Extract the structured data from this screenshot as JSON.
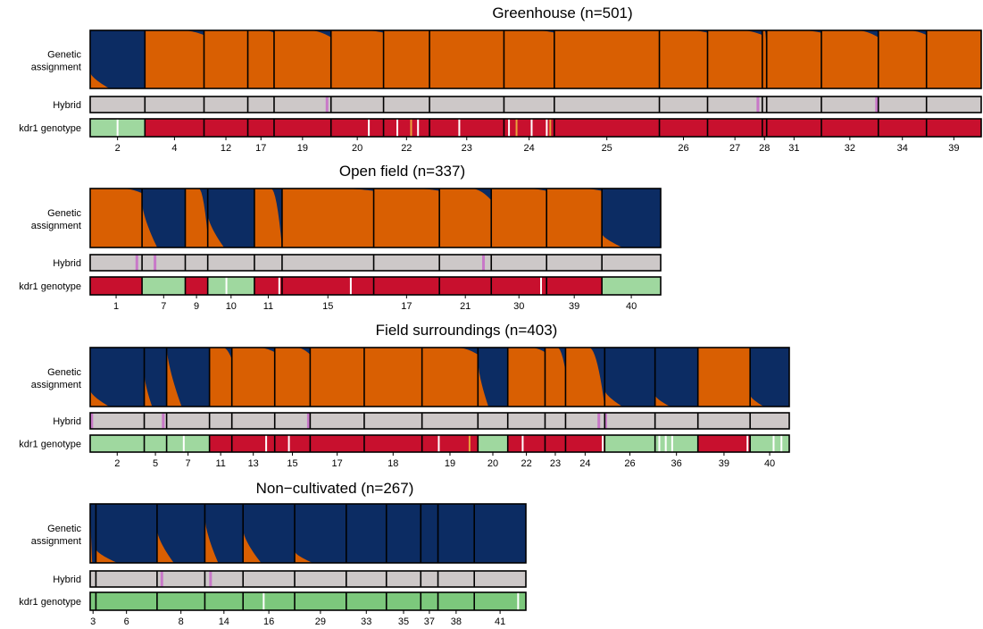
{
  "colors": {
    "cluster_orange": "#d95f02",
    "cluster_navy": "#0c2c63",
    "hybrid_gray": "#cdc8c8",
    "hybrid_pink": "#c878c8",
    "kdr_red": "#c8102e",
    "kdr_green": "#9fd89f",
    "kdr_green_dark": "#7cc87c",
    "kdr_orange": "#e8a33a",
    "kdr_white": "#ffffff"
  },
  "chart_data": {
    "type": "stacked-bar",
    "row_labels": {
      "assignment_line1": "Genetic",
      "assignment_line2": "assignment",
      "hybrid": "Hybrid",
      "kdr": "kdr1 genotype"
    },
    "panels": [
      {
        "title": "Greenhouse (n=501)",
        "n": 501,
        "populations": [
          {
            "label": "2",
            "n": 25,
            "navy": 0.97,
            "hybrid": [],
            "kdr": "green",
            "kdr_marks": [
              0.5
            ]
          },
          {
            "label": "4",
            "n": 27,
            "navy": 0.02,
            "hybrid": [],
            "kdr": "red",
            "kdr_marks": []
          },
          {
            "label": "12",
            "n": 20,
            "navy": 0.0,
            "hybrid": [],
            "kdr": "red",
            "kdr_marks": []
          },
          {
            "label": "17",
            "n": 12,
            "navy": 0.01,
            "hybrid": [],
            "kdr": "red",
            "kdr_marks": []
          },
          {
            "label": "19",
            "n": 26,
            "navy": 0.03,
            "hybrid": [
              0.93
            ],
            "kdr": "red",
            "kdr_marks": []
          },
          {
            "label": "20",
            "n": 24,
            "navy": 0.01,
            "hybrid": [],
            "kdr": "red",
            "kdr_marks": [
              0.72
            ]
          },
          {
            "label": "22",
            "n": 21,
            "navy": 0.0,
            "hybrid": [],
            "kdr": "red",
            "kdr_marks": [
              0.3,
              0.6,
              0.75
            ]
          },
          {
            "label": "23",
            "n": 34,
            "navy": 0.0,
            "hybrid": [],
            "kdr": "red",
            "kdr_marks": [
              0.4
            ]
          },
          {
            "label": "24",
            "n": 23,
            "navy": 0.01,
            "hybrid": [],
            "kdr": "red",
            "kdr_marks": [
              0.1,
              0.25,
              0.55,
              0.85,
              0.92
            ]
          },
          {
            "label": "25",
            "n": 48,
            "navy": 0.0,
            "hybrid": [],
            "kdr": "red",
            "kdr_marks": []
          },
          {
            "label": "26",
            "n": 22,
            "navy": 0.01,
            "hybrid": [],
            "kdr": "red",
            "kdr_marks": []
          },
          {
            "label": "27",
            "n": 25,
            "navy": 0.02,
            "hybrid": [
              0.92
            ],
            "kdr": "red",
            "kdr_marks": []
          },
          {
            "label": "28",
            "n": 2,
            "navy": 0.1,
            "hybrid": [],
            "kdr": "red",
            "kdr_marks": []
          },
          {
            "label": "31",
            "n": 25,
            "navy": 0.01,
            "hybrid": [],
            "kdr": "red",
            "kdr_marks": []
          },
          {
            "label": "32",
            "n": 26,
            "navy": 0.03,
            "hybrid": [
              0.97
            ],
            "kdr": "red",
            "kdr_marks": []
          },
          {
            "label": "34",
            "n": 22,
            "navy": 0.02,
            "hybrid": [],
            "kdr": "red",
            "kdr_marks": []
          },
          {
            "label": "39",
            "n": 25,
            "navy": 0.0,
            "hybrid": [],
            "kdr": "red",
            "kdr_marks": []
          }
        ]
      },
      {
        "title": "Open field (n=337)",
        "n": 337,
        "populations": [
          {
            "label": "1",
            "n": 30,
            "navy": 0.02,
            "hybrid": [
              0.9
            ],
            "kdr": "red",
            "kdr_marks": []
          },
          {
            "label": "7",
            "n": 25,
            "navy": 0.85,
            "hybrid": [
              0.3
            ],
            "kdr": "green",
            "kdr_marks": []
          },
          {
            "label": "9",
            "n": 13,
            "navy": 0.2,
            "hybrid": [],
            "kdr": "red",
            "kdr_marks": []
          },
          {
            "label": "10",
            "n": 27,
            "navy": 0.9,
            "hybrid": [],
            "kdr": "green",
            "kdr_marks": [
              0.4
            ]
          },
          {
            "label": "11",
            "n": 16,
            "navy": 0.3,
            "hybrid": [],
            "kdr": "red",
            "kdr_marks": [
              0.9
            ]
          },
          {
            "label": "15",
            "n": 53,
            "navy": 0.01,
            "hybrid": [],
            "kdr": "red",
            "kdr_marks": [
              0.75
            ]
          },
          {
            "label": "17",
            "n": 38,
            "navy": 0.01,
            "hybrid": [],
            "kdr": "red",
            "kdr_marks": []
          },
          {
            "label": "21",
            "n": 30,
            "navy": 0.05,
            "hybrid": [
              0.85
            ],
            "kdr": "red",
            "kdr_marks": []
          },
          {
            "label": "30",
            "n": 32,
            "navy": 0.01,
            "hybrid": [],
            "kdr": "red",
            "kdr_marks": [
              0.9
            ]
          },
          {
            "label": "39",
            "n": 32,
            "navy": 0.01,
            "hybrid": [],
            "kdr": "red",
            "kdr_marks": []
          },
          {
            "label": "40",
            "n": 34,
            "navy": 0.98,
            "hybrid": [],
            "kdr": "green",
            "kdr_marks": []
          }
        ]
      },
      {
        "title": "Field surroundings (n=403)",
        "n": 403,
        "populations": [
          {
            "label": "2",
            "n": 29,
            "navy": 0.97,
            "hybrid": [
              0.03
            ],
            "kdr": "green",
            "kdr_marks": []
          },
          {
            "label": "5",
            "n": 12,
            "navy": 0.9,
            "hybrid": [
              0.85
            ],
            "kdr": "green",
            "kdr_marks": []
          },
          {
            "label": "7",
            "n": 23,
            "navy": 0.75,
            "hybrid": [],
            "kdr": "green",
            "kdr_marks": [
              0.4
            ]
          },
          {
            "label": "11",
            "n": 12,
            "navy": 0.05,
            "hybrid": [],
            "kdr": "red",
            "kdr_marks": []
          },
          {
            "label": "13",
            "n": 23,
            "navy": 0.02,
            "hybrid": [],
            "kdr": "red",
            "kdr_marks": [
              0.8
            ]
          },
          {
            "label": "15",
            "n": 19,
            "navy": 0.03,
            "hybrid": [
              0.95
            ],
            "kdr": "red",
            "kdr_marks": [
              0.4
            ]
          },
          {
            "label": "17",
            "n": 29,
            "navy": 0.0,
            "hybrid": [],
            "kdr": "red",
            "kdr_marks": []
          },
          {
            "label": "18",
            "n": 31,
            "navy": 0.0,
            "hybrid": [],
            "kdr": "red",
            "kdr_marks": []
          },
          {
            "label": "19",
            "n": 30,
            "navy": 0.03,
            "hybrid": [],
            "kdr": "red",
            "kdr_marks": [
              0.3,
              0.85
            ]
          },
          {
            "label": "20",
            "n": 16,
            "navy": 0.85,
            "hybrid": [],
            "kdr": "green",
            "kdr_marks": []
          },
          {
            "label": "22",
            "n": 20,
            "navy": 0.02,
            "hybrid": [],
            "kdr": "red",
            "kdr_marks": [
              0.4
            ]
          },
          {
            "label": "23",
            "n": 11,
            "navy": 0.1,
            "hybrid": [],
            "kdr": "red",
            "kdr_marks": []
          },
          {
            "label": "24",
            "n": 21,
            "navy": 0.3,
            "hybrid": [
              0.85
            ],
            "kdr": "red",
            "kdr_marks": [
              0.95
            ]
          },
          {
            "label": "26",
            "n": 27,
            "navy": 0.97,
            "hybrid": [
              0.02
            ],
            "kdr": "green",
            "kdr_marks": []
          },
          {
            "label": "36",
            "n": 23,
            "navy": 0.99,
            "hybrid": [],
            "kdr": "green",
            "kdr_marks": [
              0.1,
              0.25,
              0.4
            ]
          },
          {
            "label": "39",
            "n": 28,
            "navy": 0.0,
            "hybrid": [],
            "kdr": "red",
            "kdr_marks": [
              0.95
            ]
          },
          {
            "label": "40",
            "n": 21,
            "navy": 0.99,
            "hybrid": [],
            "kdr": "green",
            "kdr_marks": [
              0.6,
              0.8
            ]
          }
        ]
      },
      {
        "title": "Non−cultivated (n=267)",
        "n": 267,
        "populations": [
          {
            "label": "3",
            "n": 3,
            "navy": 0.7,
            "hybrid": [],
            "kdr": "green",
            "kdr_marks": []
          },
          {
            "label": "6",
            "n": 32,
            "navy": 0.98,
            "hybrid": [],
            "kdr": "green",
            "kdr_marks": []
          },
          {
            "label": "8",
            "n": 25,
            "navy": 0.9,
            "hybrid": [
              0.1
            ],
            "kdr": "green",
            "kdr_marks": []
          },
          {
            "label": "14",
            "n": 20,
            "navy": 0.85,
            "hybrid": [
              0.15
            ],
            "kdr": "green",
            "kdr_marks": []
          },
          {
            "label": "16",
            "n": 27,
            "navy": 0.9,
            "hybrid": [],
            "kdr": "green",
            "kdr_marks": [
              0.4
            ]
          },
          {
            "label": "29",
            "n": 27,
            "navy": 0.99,
            "hybrid": [],
            "kdr": "green",
            "kdr_marks": []
          },
          {
            "label": "33",
            "n": 21,
            "navy": 1.0,
            "hybrid": [],
            "kdr": "green",
            "kdr_marks": []
          },
          {
            "label": "35",
            "n": 18,
            "navy": 1.0,
            "hybrid": [],
            "kdr": "green",
            "kdr_marks": []
          },
          {
            "label": "37",
            "n": 9,
            "navy": 1.0,
            "hybrid": [],
            "kdr": "green",
            "kdr_marks": []
          },
          {
            "label": "38",
            "n": 19,
            "navy": 1.0,
            "hybrid": [],
            "kdr": "green",
            "kdr_marks": []
          },
          {
            "label": "41",
            "n": 27,
            "navy": 1.0,
            "hybrid": [],
            "kdr": "green",
            "kdr_marks": [
              0.85
            ]
          }
        ]
      }
    ]
  }
}
